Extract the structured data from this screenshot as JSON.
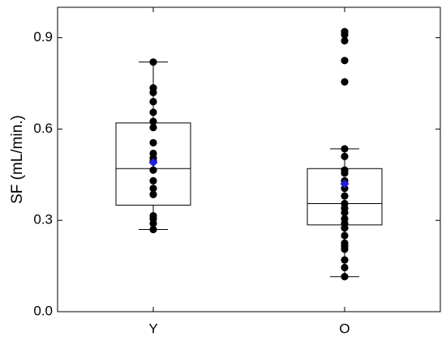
{
  "chart_data": {
    "type": "box",
    "title": "",
    "xlabel": "",
    "ylabel": "SF (mL/min.)",
    "ylim": [
      0.0,
      1.0
    ],
    "yticks": [
      0.0,
      0.3,
      0.6,
      0.9
    ],
    "ytick_labels": [
      "0.0",
      "0.3",
      "0.6",
      "0.9"
    ],
    "categories": [
      "Y",
      "O"
    ],
    "grid": false,
    "legend": "none",
    "colors": {
      "points": "#000000",
      "mean_marker": "#1f1fe0",
      "box_stroke": "#000000",
      "frame": "#000000"
    },
    "groups": [
      {
        "category": "Y",
        "whisker_low": 0.27,
        "q1": 0.35,
        "median": 0.47,
        "q3": 0.62,
        "whisker_high": 0.82,
        "mean": 0.49,
        "points": [
          0.82,
          0.735,
          0.72,
          0.69,
          0.655,
          0.625,
          0.605,
          0.555,
          0.52,
          0.505,
          0.495,
          0.465,
          0.43,
          0.405,
          0.385,
          0.315,
          0.305,
          0.29,
          0.27
        ]
      },
      {
        "category": "O",
        "whisker_low": 0.115,
        "q1": 0.285,
        "median": 0.355,
        "q3": 0.47,
        "whisker_high": 0.535,
        "mean": 0.42,
        "points": [
          0.92,
          0.91,
          0.89,
          0.825,
          0.755,
          0.535,
          0.51,
          0.465,
          0.455,
          0.43,
          0.405,
          0.38,
          0.355,
          0.34,
          0.325,
          0.305,
          0.29,
          0.275,
          0.25,
          0.225,
          0.215,
          0.205,
          0.17,
          0.145,
          0.115
        ]
      }
    ]
  }
}
